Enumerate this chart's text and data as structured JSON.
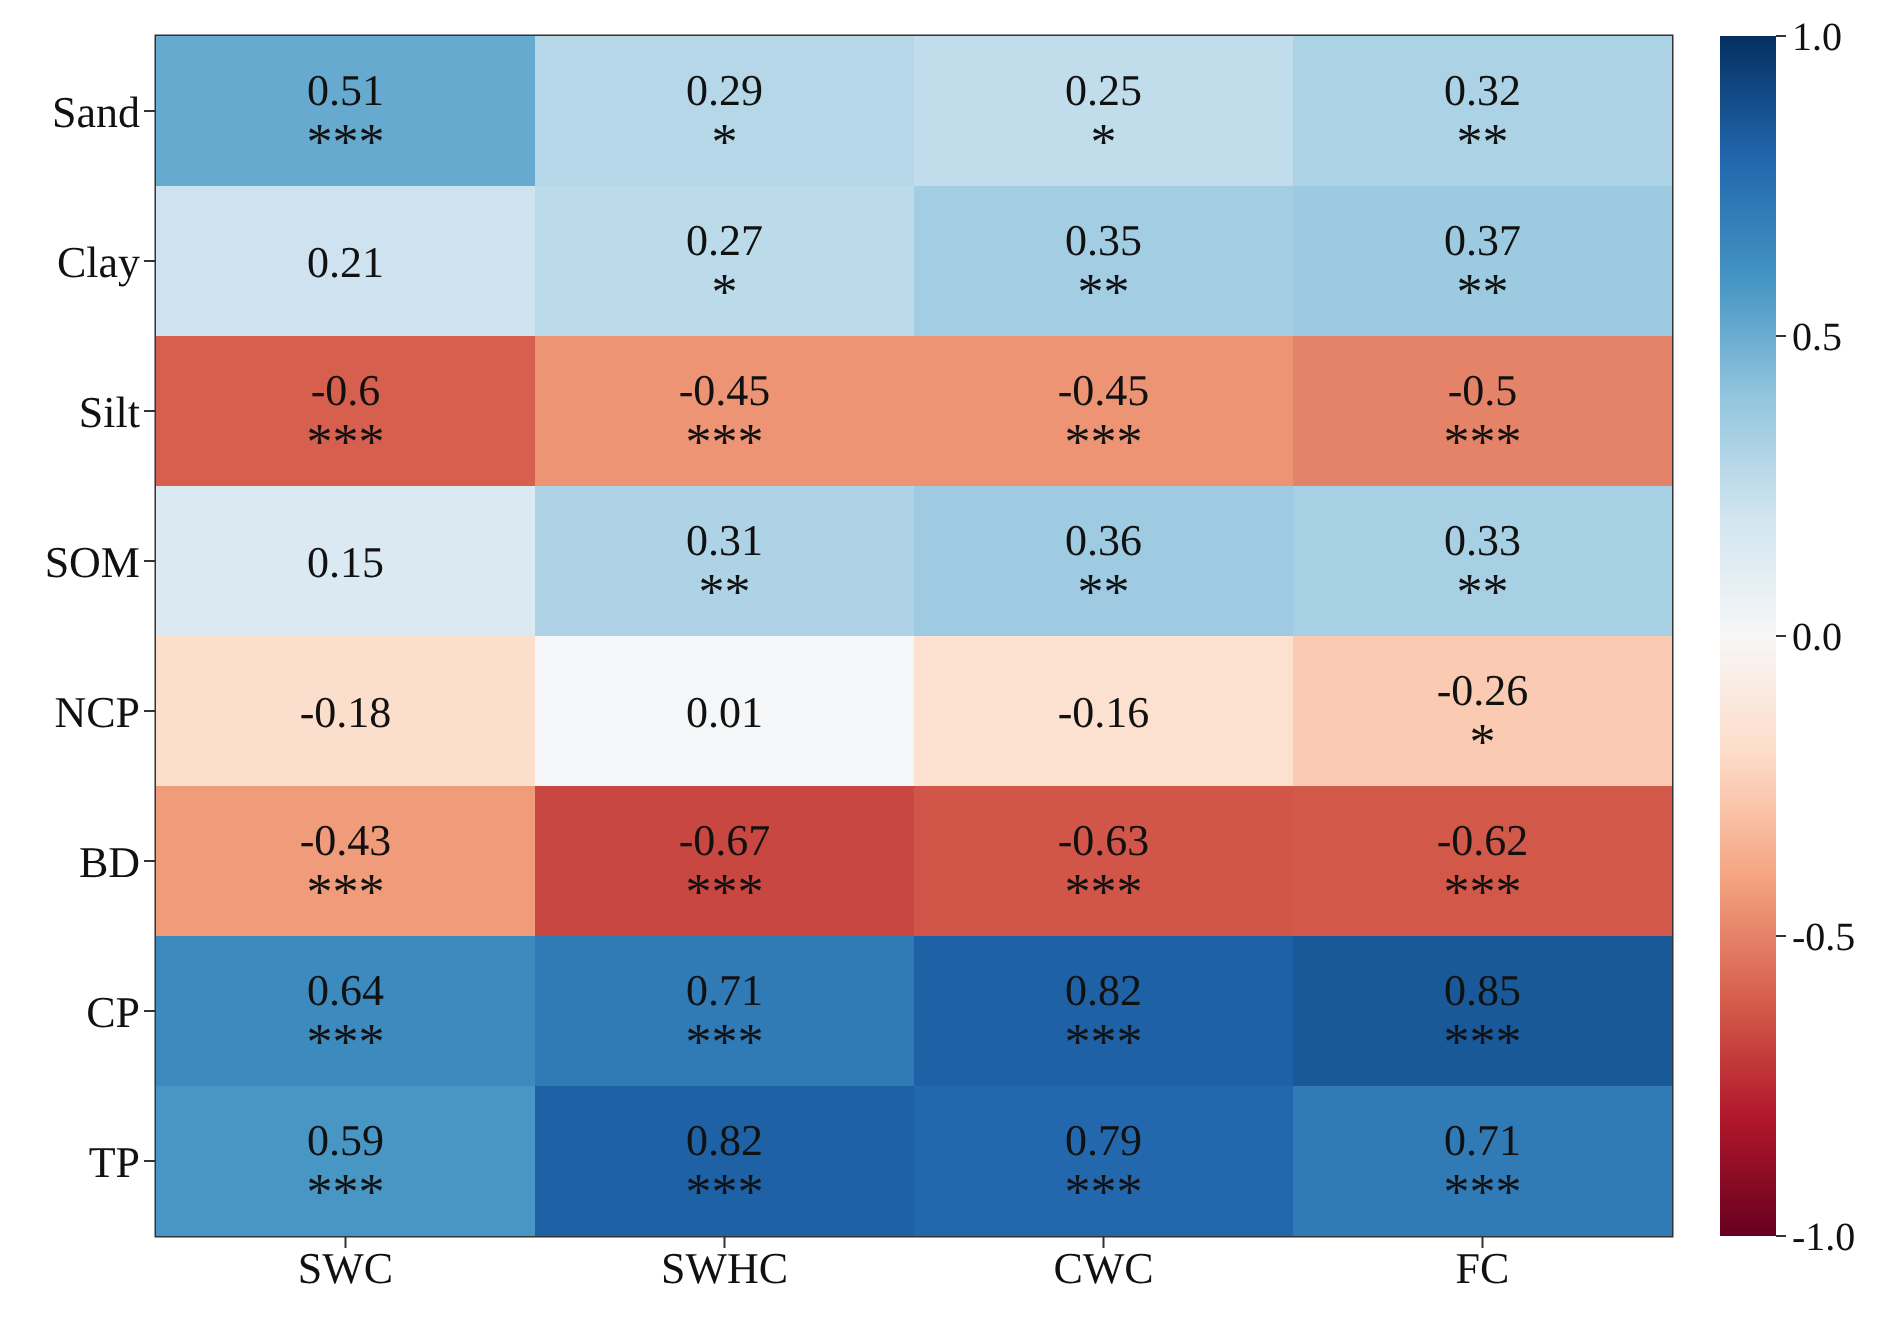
{
  "chart_data": {
    "type": "heatmap",
    "categories": [
      "SWC",
      "SWHC",
      "CWC",
      "FC"
    ],
    "y_categories": [
      "Sand",
      "Clay",
      "Silt",
      "SOM",
      "NCP",
      "BD",
      "CP",
      "TP"
    ],
    "cells": [
      [
        0.51,
        0.29,
        0.25,
        0.32
      ],
      [
        0.21,
        0.27,
        0.35,
        0.37
      ],
      [
        -0.6,
        -0.45,
        -0.45,
        -0.5
      ],
      [
        0.15,
        0.31,
        0.36,
        0.33
      ],
      [
        -0.18,
        0.01,
        -0.16,
        -0.26
      ],
      [
        -0.43,
        -0.67,
        -0.63,
        -0.62
      ],
      [
        0.64,
        0.71,
        0.82,
        0.85
      ],
      [
        0.59,
        0.82,
        0.79,
        0.71
      ]
    ],
    "cell_labels": [
      [
        "0.51\n***",
        "0.29\n*",
        "0.25\n*",
        "0.32\n**"
      ],
      [
        "0.21",
        "0.27\n*",
        "0.35\n**",
        "0.37\n**"
      ],
      [
        "-0.6\n***",
        "-0.45\n***",
        "-0.45\n***",
        "-0.5\n***"
      ],
      [
        "0.15",
        "0.31\n**",
        "0.36\n**",
        "0.33\n**"
      ],
      [
        "-0.18",
        "0.01",
        "-0.16",
        "-0.26\n*"
      ],
      [
        "-0.43\n***",
        "-0.67\n***",
        "-0.63\n***",
        "-0.62\n***"
      ],
      [
        "0.64\n***",
        "0.71\n***",
        "0.82\n***",
        "0.85\n***"
      ],
      [
        "0.59\n***",
        "0.82\n***",
        "0.79\n***",
        "0.71\n***"
      ]
    ],
    "clim": [
      -1,
      1
    ],
    "cticks": [
      {
        "value": 1,
        "label": "1.0"
      },
      {
        "value": 0.5,
        "label": "0.5"
      },
      {
        "value": 0,
        "label": "0.0"
      },
      {
        "value": -0.5,
        "label": "-0.5"
      },
      {
        "value": -1,
        "label": "-1.0"
      }
    ]
  }
}
